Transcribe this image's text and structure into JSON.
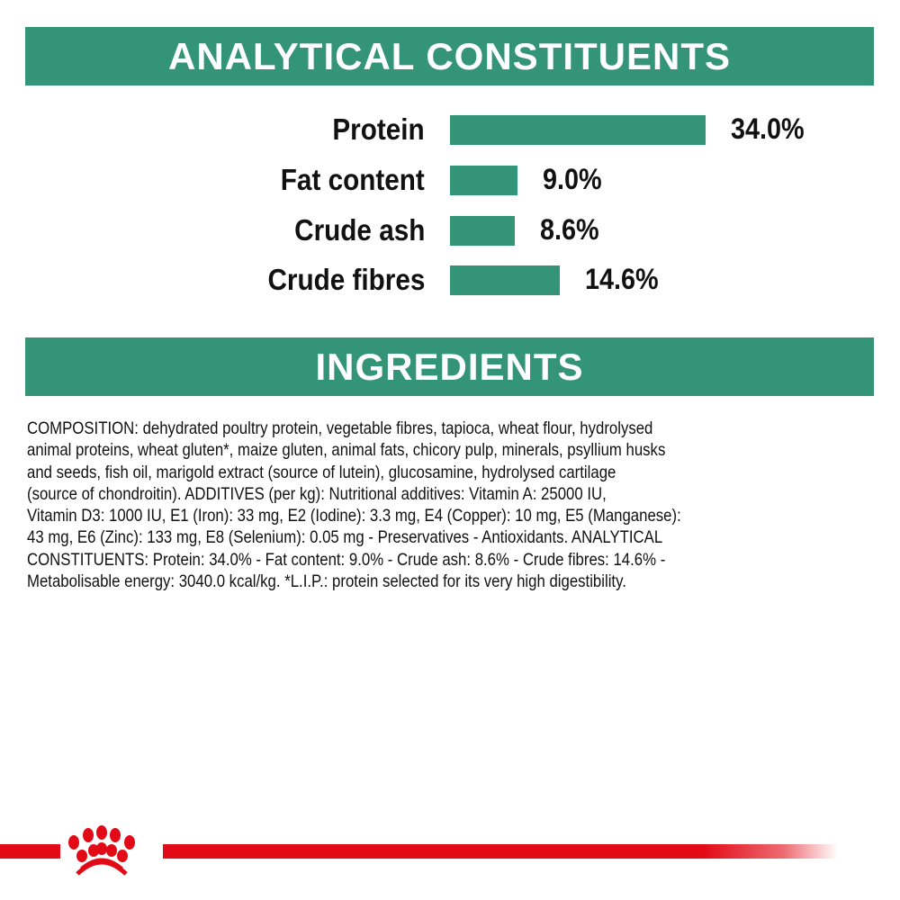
{
  "analytical_title": "ANALYTICAL CONSTITUENTS",
  "ingredients_title": "INGREDIENTS",
  "colors": {
    "accent": "#349478",
    "brand_red": "#e20a16"
  },
  "chart_data": {
    "type": "bar",
    "orientation": "horizontal",
    "categories": [
      "Protein",
      "Fat content",
      "Crude ash",
      "Crude fibres"
    ],
    "values": [
      34.0,
      9.0,
      8.6,
      14.6
    ],
    "value_labels": [
      "34.0%",
      "9.0%",
      "8.6%",
      "14.6%"
    ],
    "title": "ANALYTICAL CONSTITUENTS",
    "grid": false
  },
  "ingredients_lines": [
    "COMPOSITION: dehydrated poultry protein, vegetable fibres, tapioca, wheat flour, hydrolysed",
    "animal proteins, wheat gluten*, maize gluten, animal fats, chicory pulp, minerals, psyllium husks",
    "and seeds, fish oil, marigold extract (source of lutein), glucosamine, hydrolysed cartilage",
    "(source of chondroitin). ADDITIVES (per kg): Nutritional additives: Vitamin A: 25000 IU,",
    "Vitamin D3: 1000 IU, E1 (Iron): 33 mg, E2 (Iodine): 3.3 mg, E4 (Copper): 10 mg, E5 (Manganese):",
    "43 mg, E6 (Zinc): 133 mg, E8 (Selenium): 0.05 mg - Preservatives - Antioxidants. ANALYTICAL",
    "CONSTITUENTS: Protein: 34.0% - Fat content: 9.0% - Crude ash: 8.6% - Crude fibres: 14.6% -",
    "Metabolisable energy: 3040.0 kcal/kg. *L.I.P.: protein selected for its very high digestibility."
  ],
  "logo": "royal-crown-paw-icon"
}
